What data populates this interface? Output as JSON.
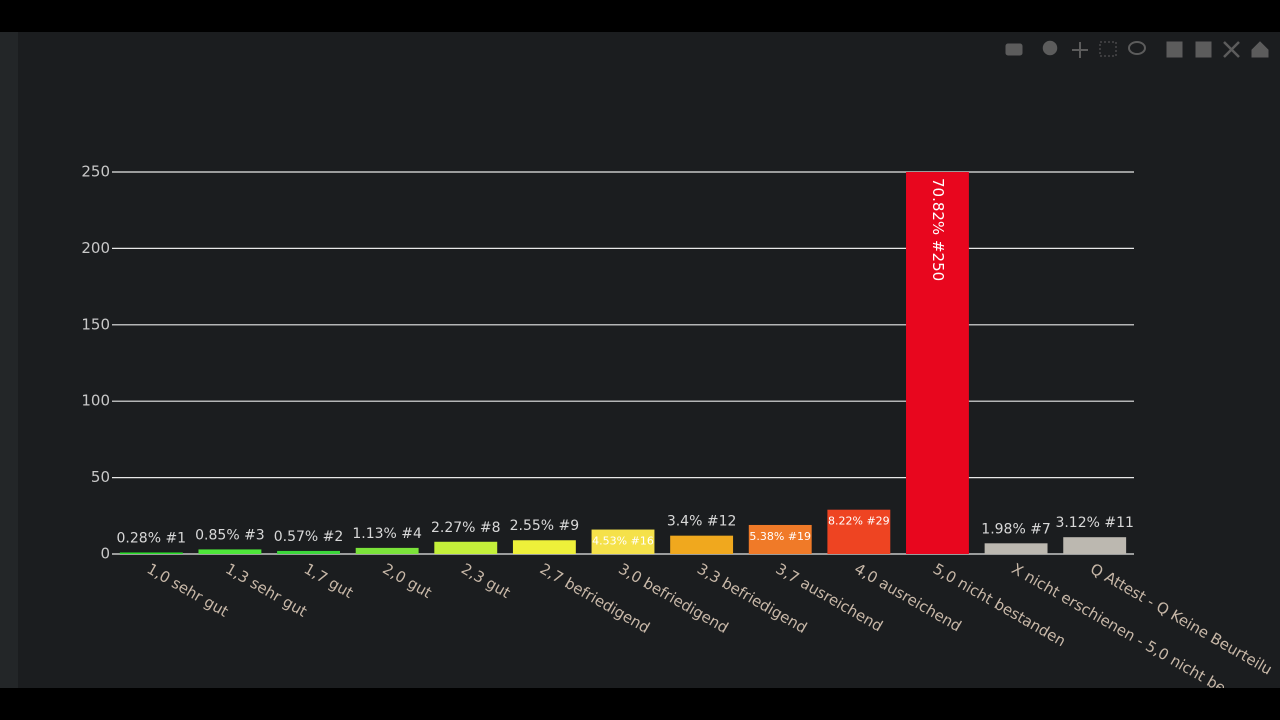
{
  "chart_data": {
    "type": "bar",
    "categories": [
      "1,0 sehr gut",
      "1,3 sehr gut",
      "1,7 gut",
      "2,0 gut",
      "2,3 gut",
      "2,7 befriedigend",
      "3,0 befriedigend",
      "3,3 befriedigend",
      "3,7 ausreichend",
      "4,0 ausreichend",
      "5,0 nicht bestanden",
      "X nicht erschienen - 5,0 nicht be",
      "Q Attest - Q Keine Beurteilu"
    ],
    "values": [
      1,
      3,
      2,
      4,
      8,
      9,
      16,
      12,
      19,
      29,
      250,
      7,
      11
    ],
    "value_labels": [
      "0.28% #1",
      "0.85% #3",
      "0.57% #2",
      "1.13% #4",
      "2.27% #8",
      "2.55% #9",
      "4.53% #16",
      "3.4% #12",
      "5.38% #19",
      "8.22% #29",
      "70.82% #250",
      "1.98% #7",
      "3.12% #11"
    ],
    "colors": [
      "#2ee02e",
      "#4ee63a",
      "#3cd83c",
      "#7be33a",
      "#c4f03a",
      "#eef03a",
      "#f5e14a",
      "#f0a81e",
      "#f07a28",
      "#ee4422",
      "#e8061e",
      "#bcb8b0",
      "#bcb8b0"
    ],
    "ylim": [
      0,
      250
    ],
    "yticks": [
      0,
      50,
      100,
      150,
      200,
      250
    ],
    "grid": true
  }
}
